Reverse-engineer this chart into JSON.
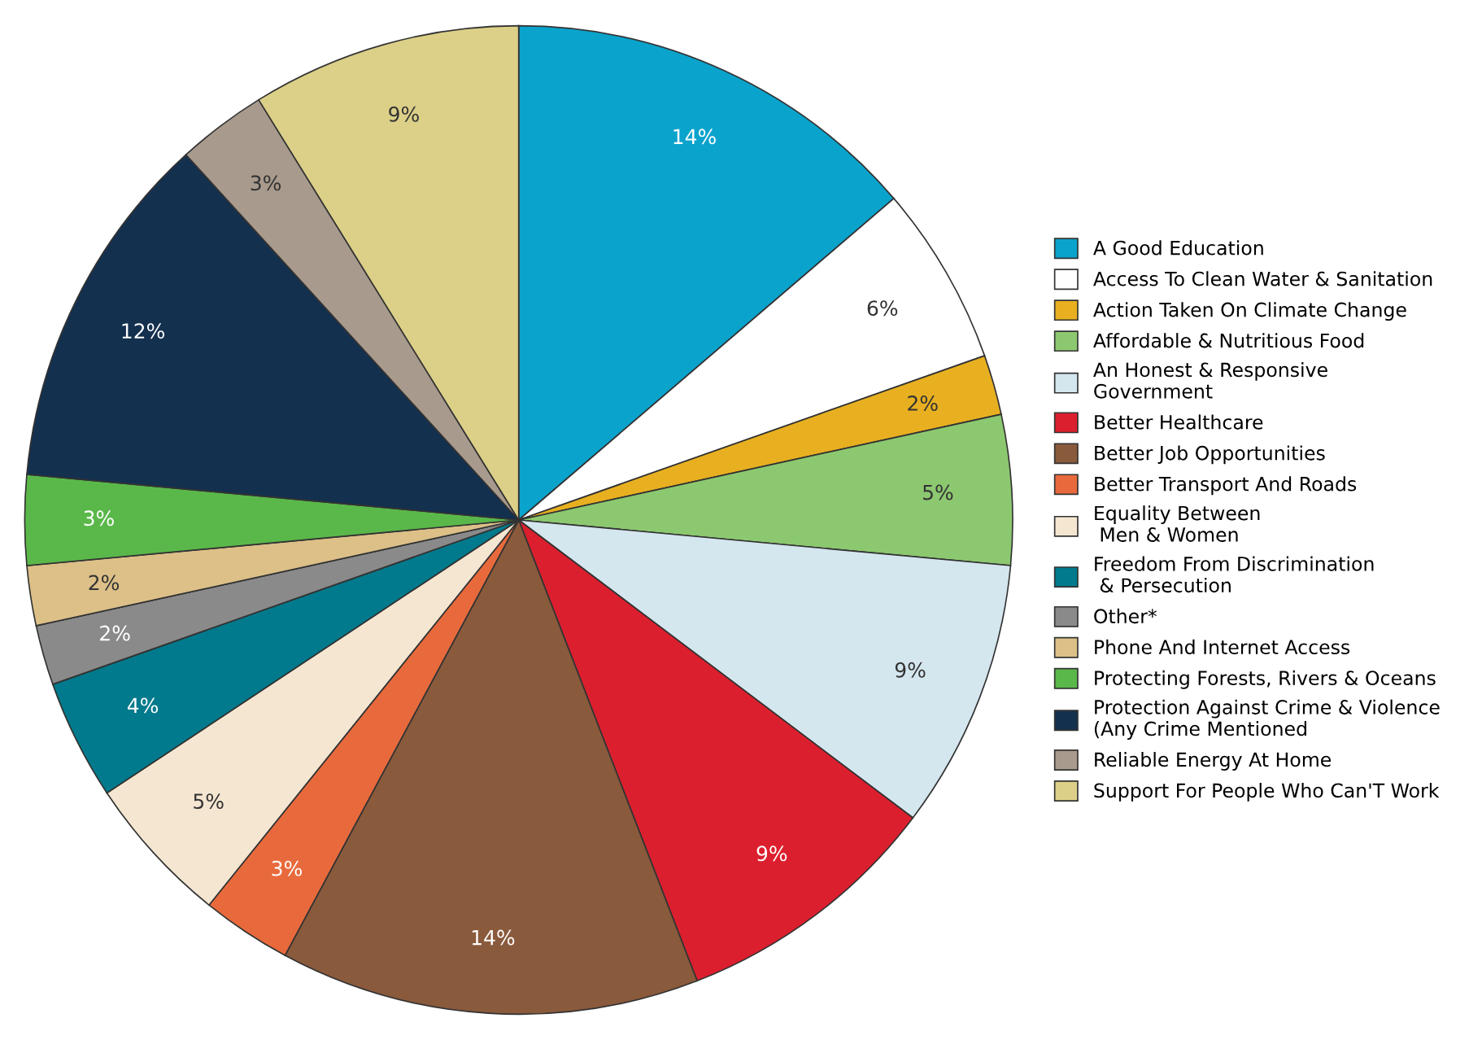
{
  "chart_data": {
    "type": "pie",
    "categories": [
      "A Good Education",
      "Access To Clean Water & Sanitation",
      "Action Taken On Climate Change",
      "Affordable & Nutritious Food",
      "An Honest & Responsive\nGovernment",
      "Better Healthcare",
      "Better Job Opportunities",
      "Better Transport And Roads",
      "Equality Between\n Men & Women",
      "Freedom From Discrimination\n & Persecution",
      "Other*",
      "Phone And Internet Access",
      "Protecting Forests, Rivers & Oceans",
      "Protection Against Crime & Violence\n(Any Crime Mentioned",
      "Reliable Energy At Home",
      "Support For People Who Can'T Work"
    ],
    "values": [
      14,
      6,
      2,
      5,
      9,
      9,
      14,
      3,
      5,
      4,
      2,
      2,
      3,
      12,
      3,
      9
    ],
    "value_labels": [
      "14%",
      "6%",
      "2%",
      "5%",
      "9%",
      "9%",
      "14%",
      "3%",
      "5%",
      "4%",
      "2%",
      "2%",
      "3%",
      "12%",
      "3%",
      "9%"
    ],
    "colors": [
      "#0aa3cc",
      "#ffffff",
      "#e8b020",
      "#8cc870",
      "#d4e6ee",
      "#dc1f2e",
      "#8a5a3c",
      "#e86a3c",
      "#f5e6d2",
      "#007a8c",
      "#8a8a8a",
      "#dcc088",
      "#5ab84a",
      "#14304f",
      "#a89a8c",
      "#dcd088"
    ],
    "legend": "right"
  }
}
